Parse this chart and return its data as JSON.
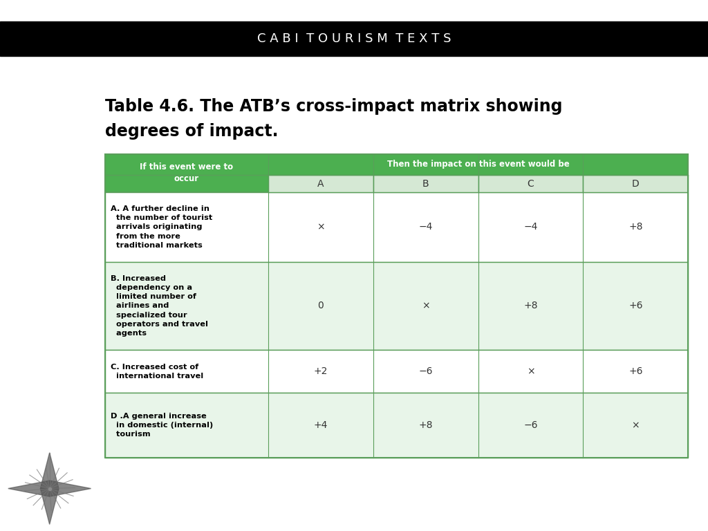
{
  "header_bar_color": "#000000",
  "header_bar_text": "C A B I  T O U R I S M  T E X T S",
  "header_bar_text_color": "#ffffff",
  "title_line1": "Table 4.6. The ATB’s cross-impact matrix showing",
  "title_line2": "degrees of impact.",
  "table_header_green": "#4caf50",
  "table_header_light_green": "#d5e8d4",
  "table_border_color": "#5a9e5a",
  "col0_header": "If this event were to\noccur",
  "col_headers": [
    "A",
    "B",
    "C",
    "D"
  ],
  "top_header": "Then the impact on this event would be",
  "rows": [
    {
      "label": "A. A further decline in\n  the number of tourist\n  arrivals originating\n  from the more\n  traditional markets",
      "values": [
        "×",
        "−4",
        "−4",
        "+8"
      ],
      "bg": "#ffffff"
    },
    {
      "label": "B. Increased\n  dependency on a\n  limited number of\n  airlines and\n  specialized tour\n  operators and travel\n  agents",
      "values": [
        "0",
        "×",
        "+8",
        "+6"
      ],
      "bg": "#e8f5e9"
    },
    {
      "label": "C. Increased cost of\n  international travel",
      "values": [
        "+2",
        "−6",
        "×",
        "+6"
      ],
      "bg": "#ffffff"
    },
    {
      "label": "D .A general increase\n  in domestic (internal)\n  tourism",
      "values": [
        "+4",
        "+8",
        "−6",
        "×"
      ],
      "bg": "#e8f5e9"
    }
  ]
}
